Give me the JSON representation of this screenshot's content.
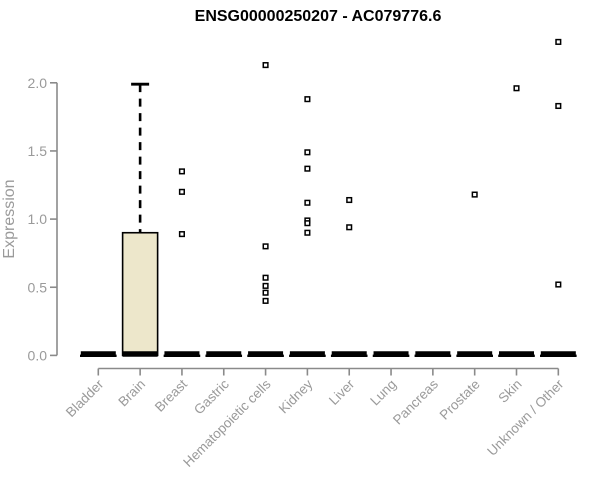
{
  "chart_data": {
    "type": "boxplot",
    "title": "ENSG00000250207 - AC079776.6",
    "ylabel": "Expression",
    "xlabel": "",
    "ylim": [
      0.0,
      2.35
    ],
    "grid": false,
    "legend": "none",
    "y_ticks": [
      {
        "label": "0.0",
        "value": 0.0
      },
      {
        "label": "0.5",
        "value": 0.5
      },
      {
        "label": "1.0",
        "value": 1.0
      },
      {
        "label": "1.5",
        "value": 1.5
      },
      {
        "label": "2.0",
        "value": 2.0
      }
    ],
    "categories": [
      "Bladder",
      "Brain",
      "Breast",
      "Gastric",
      "Hematopoietic cells",
      "Kidney",
      "Liver",
      "Lung",
      "Pancreas",
      "Prostate",
      "Skin",
      "Unknown / Other"
    ],
    "series": [
      {
        "category": "Bladder",
        "q1": 0,
        "median": 0.01,
        "q3": 0,
        "whisker_low": 0,
        "whisker_high": 0,
        "outliers": []
      },
      {
        "category": "Brain",
        "q1": 0,
        "median": 0.01,
        "q3": 0.9,
        "whisker_low": 0,
        "whisker_high": 1.99,
        "outliers": []
      },
      {
        "category": "Breast",
        "q1": 0,
        "median": 0.01,
        "q3": 0,
        "whisker_low": 0,
        "whisker_high": 0,
        "outliers": [
          1.35,
          1.2,
          0.89
        ]
      },
      {
        "category": "Gastric",
        "q1": 0,
        "median": 0.01,
        "q3": 0,
        "whisker_low": 0,
        "whisker_high": 0,
        "outliers": []
      },
      {
        "category": "Hematopoietic cells",
        "q1": 0,
        "median": 0.01,
        "q3": 0,
        "whisker_low": 0,
        "whisker_high": 0,
        "outliers": [
          2.13,
          0.8,
          0.57,
          0.51,
          0.46,
          0.4
        ]
      },
      {
        "category": "Kidney",
        "q1": 0,
        "median": 0.01,
        "q3": 0,
        "whisker_low": 0,
        "whisker_high": 0,
        "outliers": [
          1.88,
          1.49,
          1.37,
          1.12,
          0.99,
          0.97,
          0.9
        ]
      },
      {
        "category": "Liver",
        "q1": 0,
        "median": 0.01,
        "q3": 0,
        "whisker_low": 0,
        "whisker_high": 0,
        "outliers": [
          1.14,
          0.94
        ]
      },
      {
        "category": "Lung",
        "q1": 0,
        "median": 0.01,
        "q3": 0,
        "whisker_low": 0,
        "whisker_high": 0,
        "outliers": []
      },
      {
        "category": "Pancreas",
        "q1": 0,
        "median": 0.01,
        "q3": 0,
        "whisker_low": 0,
        "whisker_high": 0,
        "outliers": []
      },
      {
        "category": "Prostate",
        "q1": 0,
        "median": 0.01,
        "q3": 0,
        "whisker_low": 0,
        "whisker_high": 0,
        "outliers": [
          1.18
        ]
      },
      {
        "category": "Skin",
        "q1": 0,
        "median": 0.01,
        "q3": 0,
        "whisker_low": 0,
        "whisker_high": 0,
        "outliers": [
          1.96
        ]
      },
      {
        "category": "Unknown / Other",
        "q1": 0,
        "median": 0.01,
        "q3": 0,
        "whisker_low": 0,
        "whisker_high": 0,
        "outliers": [
          2.3,
          1.83,
          0.52
        ]
      }
    ],
    "colors": {
      "box_fill": "#EDE7CB",
      "box_border": "#000000",
      "median": "#000000",
      "whisker": "#000000",
      "outlier_border": "#000000",
      "outlier_fill": "#FFFFFF",
      "axis_line": "#8A8A8A",
      "tick_label": "#9A9A9A",
      "title": "#000000",
      "background": "#FFFFFF"
    }
  }
}
